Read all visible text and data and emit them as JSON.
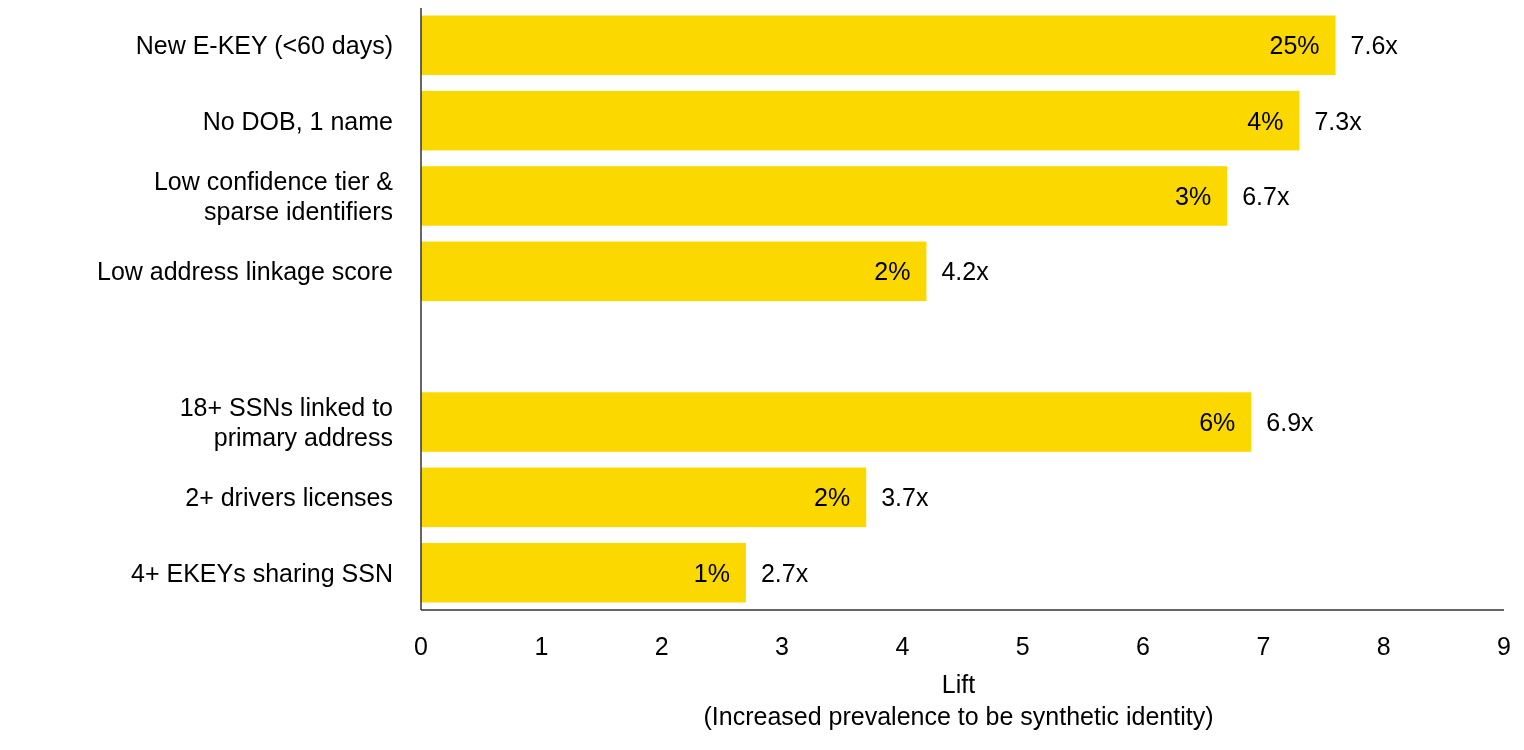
{
  "chart_data": {
    "type": "bar",
    "orientation": "horizontal",
    "categories": [
      "New E-KEY (<60 days)",
      "No DOB, 1 name",
      "Low confidence tier &\nsparse identifiers",
      "Low address linkage score",
      null,
      "18+ SSNs linked to\nprimary address",
      "2+ drivers licenses",
      "4+ EKEYs sharing SSN"
    ],
    "values": [
      7.6,
      7.3,
      6.7,
      4.2,
      null,
      6.9,
      3.7,
      2.7
    ],
    "value_labels": [
      "7.6x",
      "7.3x",
      "6.7x",
      "4.2x",
      null,
      "6.9x",
      "3.7x",
      "2.7x"
    ],
    "color": "#fad800",
    "xlim": [
      0,
      9
    ],
    "xticks": [
      0,
      1,
      2,
      3,
      4,
      5,
      6,
      7,
      8,
      9
    ],
    "xlabel": "Lift\n(Increased prevalence to be synthetic identity)",
    "annotations": [
      {
        "text": "25%",
        "x": 7.6,
        "y": "New E-KEY (<60 days)"
      },
      {
        "text": "4%",
        "x": 7.3,
        "y": "No DOB, 1 name"
      },
      {
        "text": "3%",
        "x": 6.7,
        "y": "Low confidence tier &\nsparse identifiers"
      },
      {
        "text": "2%",
        "x": 4.2,
        "y": "Low address linkage score"
      },
      {
        "text": "6%",
        "x": 6.9,
        "y": "18+ SSNs linked to\nprimary address"
      },
      {
        "text": "2%",
        "x": 3.7,
        "y": "2+ drivers licenses"
      },
      {
        "text": "1%",
        "x": 2.7,
        "y": "4+ EKEYs sharing SSN"
      }
    ],
    "grid": false
  }
}
